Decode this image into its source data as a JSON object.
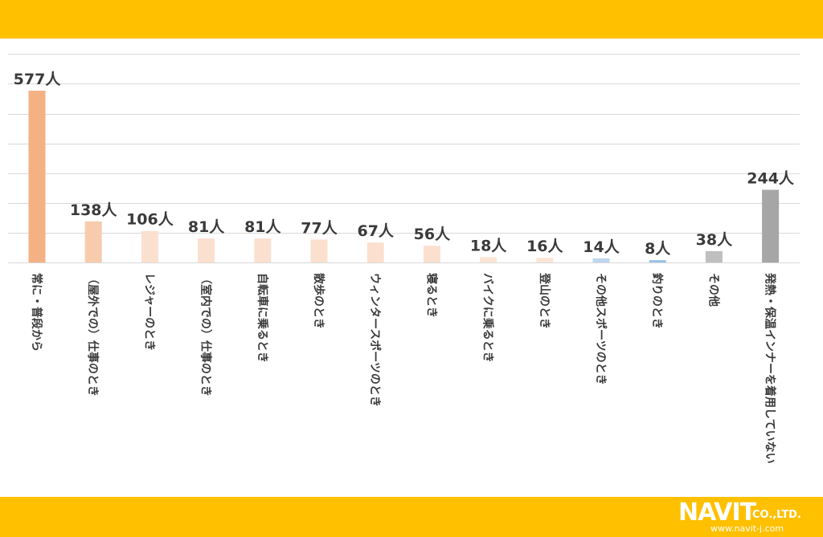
{
  "chart_data": {
    "type": "bar",
    "categories": [
      "常に・普段から",
      "（屋外での）仕事のとき",
      "レジャーのとき",
      "（室内での）仕事のとき",
      "自転車に乗るとき",
      "散歩のとき",
      "ウィンタースポーツのとき",
      "寝るとき",
      "バイクに乗るとき",
      "登山のとき",
      "その他スポーツのとき",
      "釣りのとき",
      "その他",
      "発熱・保温インナーを着用していない"
    ],
    "values": [
      577,
      138,
      106,
      81,
      81,
      77,
      67,
      56,
      18,
      16,
      14,
      8,
      38,
      244
    ],
    "value_labels": [
      "577人",
      "138人",
      "106人",
      "81人",
      "81人",
      "77人",
      "67人",
      "56人",
      "18人",
      "16人",
      "14人",
      "8人",
      "38人",
      "244人"
    ],
    "colors": [
      "#F4B183",
      "#F8CBAD",
      "#FBE0CF",
      "#FBE0CF",
      "#FBE0CF",
      "#FBE0CF",
      "#FBE0CF",
      "#FBE0CF",
      "#FBE5D6",
      "#FBE5D6",
      "#BDD7EE",
      "#9DC3E6",
      "#BFBFBF",
      "#A6A6A6"
    ],
    "ylim": [
      0,
      700
    ],
    "gridlines": [
      100,
      200,
      300,
      400,
      500,
      600,
      700
    ],
    "grid": true,
    "legend": "none"
  },
  "footer": {
    "logo_text": "NAVIT",
    "logo_company": "CO.,LTD.",
    "logo_url": "www.navit-j.com"
  }
}
